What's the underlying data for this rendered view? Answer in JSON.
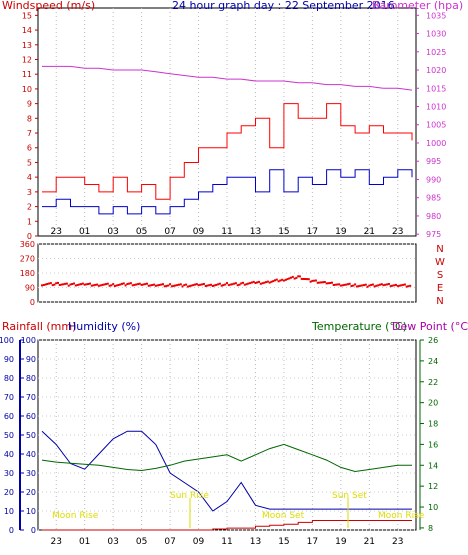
{
  "colors": {
    "wind": "#dd0000",
    "gust": "#ff0000",
    "avg_wind": "#0000cc",
    "barometer": "#cc33cc",
    "direction": "#ee0000",
    "rain": "#cc0000",
    "humidity": "#0000aa",
    "temperature": "#006600",
    "dew_point": "#aa00aa",
    "sun": "#dddd00",
    "moon": "#dddd00",
    "axis_left_top": "#cc0000",
    "axis_left_bottom": "#0000aa",
    "axis_right_green": "#006600"
  },
  "chart_data": [
    {
      "id": "wind_panel",
      "type": "line",
      "title": "24 hour graph day : 22 September 2016",
      "left_label": "Windspeed (m/s)",
      "right_label": "Barometer (hpa)",
      "x_ticks": [
        "23",
        "01",
        "03",
        "05",
        "07",
        "09",
        "11",
        "13",
        "15",
        "17",
        "19",
        "21",
        "23"
      ],
      "left_ticks": [
        "0",
        "1",
        "2",
        "3",
        "4",
        "5",
        "6",
        "7",
        "8",
        "9",
        "10",
        "11",
        "12",
        "13",
        "14",
        "15"
      ],
      "right_ticks": [
        "975",
        "980",
        "985",
        "990",
        "995",
        "1000",
        "1005",
        "1010",
        "1015",
        "1020",
        "1025",
        "1030",
        "1035"
      ],
      "ylim_left": [
        0,
        15.5
      ],
      "ylim_right": [
        974.5,
        1037
      ],
      "x_hours": [
        22,
        23,
        0,
        1,
        2,
        3,
        4,
        5,
        6,
        7,
        8,
        9,
        10,
        11,
        12,
        13,
        14,
        15,
        16,
        17,
        18,
        19,
        20,
        21,
        22,
        23,
        24
      ],
      "series": [
        {
          "key": "gust",
          "axis": "left",
          "values": [
            3,
            4,
            4,
            3.5,
            3,
            4,
            3,
            3.5,
            2.5,
            4,
            5,
            6,
            6,
            7,
            7.5,
            8,
            6,
            9,
            8,
            8,
            9,
            7.5,
            7,
            7.5,
            7,
            7,
            6.5
          ]
        },
        {
          "key": "avg_wind",
          "axis": "left",
          "values": [
            2,
            2.5,
            2,
            2,
            1.5,
            2,
            1.5,
            2,
            1.5,
            2,
            2.5,
            3,
            3.5,
            4,
            4,
            3,
            4.5,
            3,
            4,
            3.5,
            4.5,
            4,
            4.5,
            3.5,
            4,
            4.5,
            4
          ]
        },
        {
          "key": "barometer",
          "axis": "right",
          "values": [
            1021,
            1021,
            1021,
            1020.5,
            1020.5,
            1020,
            1020,
            1020,
            1019.5,
            1019,
            1018.5,
            1018,
            1018,
            1017.5,
            1017.5,
            1017,
            1017,
            1017,
            1016.5,
            1016.5,
            1016,
            1016,
            1015.5,
            1015.5,
            1015,
            1015,
            1014.5
          ]
        }
      ]
    },
    {
      "id": "direction_panel",
      "type": "scatter",
      "y_ticks": [
        "0",
        "90",
        "180",
        "270",
        "360"
      ],
      "compass": [
        "N",
        "W",
        "S",
        "E",
        "N"
      ],
      "ylim": [
        0,
        360
      ],
      "x_hours": [
        22,
        23,
        0,
        1,
        2,
        3,
        4,
        5,
        6,
        7,
        8,
        9,
        10,
        11,
        12,
        13,
        14,
        15,
        16,
        17,
        18,
        19,
        20,
        21,
        22,
        23,
        24
      ],
      "values": [
        110,
        112,
        108,
        110,
        107,
        106,
        110,
        108,
        106,
        104,
        102,
        105,
        104,
        110,
        112,
        118,
        124,
        140,
        155,
        130,
        118,
        108,
        104,
        100,
        106,
        104,
        102
      ]
    },
    {
      "id": "rain_panel",
      "type": "line",
      "left_label_rain": "Rainfall (mm)",
      "left_label_humidity": "Humidity (%)",
      "right_label_temp": "Temperature (°C)",
      "right_label_dew": "Dew Point (°C)",
      "x_ticks": [
        "23",
        "01",
        "03",
        "05",
        "07",
        "09",
        "11",
        "13",
        "15",
        "17",
        "19",
        "21",
        "23"
      ],
      "rain_ticks": [
        "0",
        "10",
        "20",
        "30",
        "40",
        "50",
        "60",
        "70",
        "80",
        "90",
        "100"
      ],
      "humidity_ticks": [
        "0",
        "10",
        "20",
        "30",
        "40",
        "50",
        "60",
        "70",
        "80",
        "90",
        "100"
      ],
      "temp_ticks": [
        "8",
        "10",
        "12",
        "14",
        "16",
        "18",
        "20",
        "22",
        "24",
        "26"
      ],
      "ylim_humidity": [
        0,
        100
      ],
      "ylim_temp": [
        7.8,
        26
      ],
      "x_hours": [
        22,
        23,
        0,
        1,
        2,
        3,
        4,
        5,
        6,
        7,
        8,
        9,
        10,
        11,
        12,
        13,
        14,
        15,
        16,
        17,
        18,
        19,
        20,
        21,
        22,
        23,
        24
      ],
      "series": [
        {
          "key": "humidity",
          "axis": "left",
          "values": [
            52,
            45,
            35,
            32,
            40,
            48,
            52,
            52,
            45,
            30,
            25,
            20,
            10,
            15,
            25,
            13,
            11,
            11,
            11,
            11,
            11,
            11,
            11,
            11,
            11,
            11,
            11
          ]
        },
        {
          "key": "temperature",
          "axis": "right",
          "values": [
            14.5,
            14.3,
            14.2,
            14.1,
            14.0,
            13.8,
            13.6,
            13.5,
            13.7,
            14.0,
            14.4,
            14.6,
            14.8,
            15.0,
            14.4,
            15.0,
            15.6,
            16.0,
            15.5,
            15.0,
            14.5,
            13.8,
            13.4,
            13.6,
            13.8,
            14.0,
            14.0
          ]
        },
        {
          "key": "rain",
          "axis": "left",
          "values": [
            0,
            0,
            0,
            0,
            0,
            0,
            0,
            0,
            0,
            0,
            0,
            0,
            0.5,
            1,
            1,
            2,
            2.5,
            3,
            4,
            5,
            5,
            5,
            5,
            5,
            5,
            5,
            5
          ]
        }
      ],
      "annotations": {
        "moon_rise_left": "Moon Rise",
        "sun_rise": "Sun Rise",
        "moon_set": "Moon Set",
        "sun_set": "Sun Set",
        "moon_rise_right": "Moon Rise"
      }
    }
  ]
}
